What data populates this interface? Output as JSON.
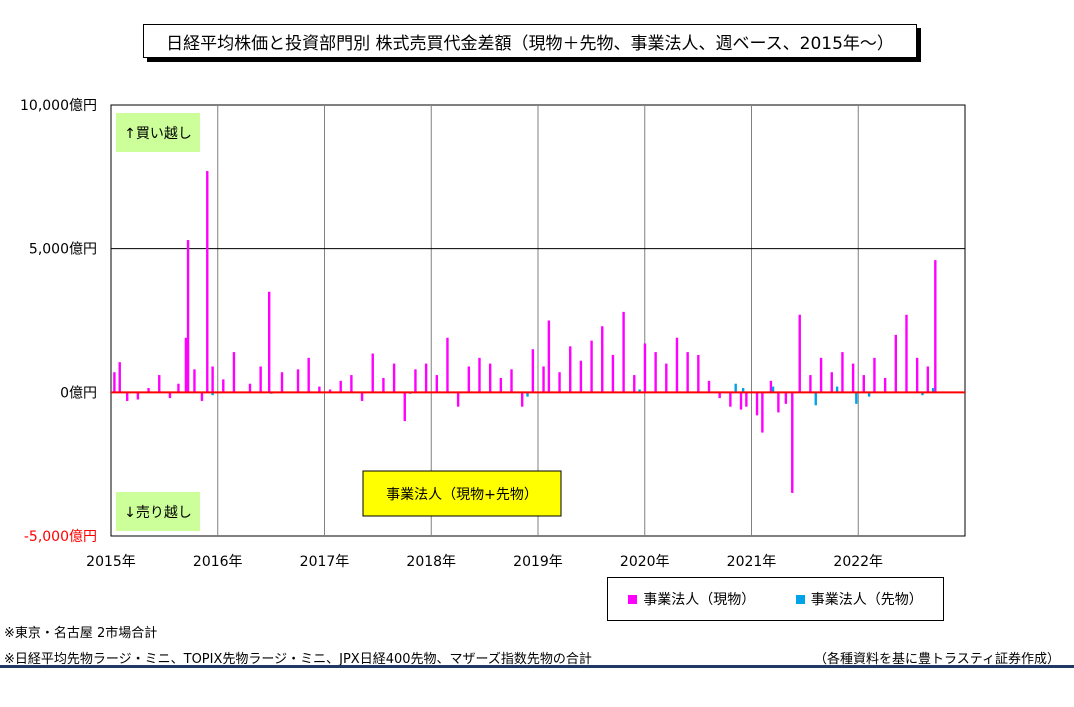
{
  "title": "日経平均株価と投資部門別 株式売買代金差額（現物＋先物、事業法人、週ベース、2015年～）",
  "notes": [
    "※東京・名古屋 2市場合計",
    "※日経平均先物ラージ・ミニ、TOPIX先物ラージ・ミニ、JPX日経400先物、マザーズ指数先物の合計"
  ],
  "source": "（各種資料を基に豊トラスティ証券作成）",
  "colors": {
    "spot": "#ff00ff",
    "futures": "#00a2e8",
    "zero_line": "#ff0000",
    "buy_box": "#ccff99",
    "series_box": "#ffff00",
    "neg_label": "#ff0000"
  },
  "chart_data": {
    "type": "bar",
    "title": "日経平均株価と投資部門別 株式売買代金差額（現物＋先物、事業法人、週ベース、2015年～）",
    "y_tick_labels": [
      "10,000億円",
      "5,000億円",
      "0億円",
      "-5,000億円"
    ],
    "y_ticks": [
      10000,
      5000,
      0,
      -5000
    ],
    "ylim": [
      -5000,
      10000
    ],
    "x_tick_labels": [
      "2015年",
      "2016年",
      "2017年",
      "2018年",
      "2019年",
      "2020年",
      "2021年",
      "2022年"
    ],
    "x_ticks": [
      2015,
      2016,
      2017,
      2018,
      2019,
      2020,
      2021,
      2022
    ],
    "xlim": [
      2015,
      2023
    ],
    "grid": true,
    "legend_placement": "bottom-right",
    "annotations": {
      "buy": "↑買い越し",
      "sell": "↓売り越し",
      "series_box": "事業法人（現物+先物）"
    },
    "series": [
      {
        "name": "事業法人（現物）",
        "points": [
          [
            2015.03,
            700
          ],
          [
            2015.08,
            1050
          ],
          [
            2015.15,
            -300
          ],
          [
            2015.25,
            -250
          ],
          [
            2015.35,
            150
          ],
          [
            2015.45,
            600
          ],
          [
            2015.55,
            -200
          ],
          [
            2015.63,
            300
          ],
          [
            2015.7,
            1900
          ],
          [
            2015.72,
            5300
          ],
          [
            2015.78,
            800
          ],
          [
            2015.85,
            -300
          ],
          [
            2015.9,
            7700
          ],
          [
            2015.95,
            900
          ],
          [
            2016.05,
            450
          ],
          [
            2016.15,
            1400
          ],
          [
            2016.3,
            300
          ],
          [
            2016.4,
            900
          ],
          [
            2016.48,
            3500
          ],
          [
            2016.6,
            700
          ],
          [
            2016.75,
            800
          ],
          [
            2016.85,
            1200
          ],
          [
            2016.95,
            200
          ],
          [
            2017.05,
            100
          ],
          [
            2017.15,
            400
          ],
          [
            2017.25,
            600
          ],
          [
            2017.35,
            -300
          ],
          [
            2017.45,
            1350
          ],
          [
            2017.55,
            500
          ],
          [
            2017.65,
            1000
          ],
          [
            2017.75,
            -1000
          ],
          [
            2017.85,
            800
          ],
          [
            2017.95,
            1000
          ],
          [
            2018.05,
            600
          ],
          [
            2018.15,
            1900
          ],
          [
            2018.25,
            -500
          ],
          [
            2018.35,
            900
          ],
          [
            2018.45,
            1200
          ],
          [
            2018.55,
            1000
          ],
          [
            2018.65,
            500
          ],
          [
            2018.75,
            800
          ],
          [
            2018.85,
            -500
          ],
          [
            2018.95,
            1500
          ],
          [
            2019.05,
            900
          ],
          [
            2019.1,
            2500
          ],
          [
            2019.2,
            700
          ],
          [
            2019.3,
            1600
          ],
          [
            2019.4,
            1100
          ],
          [
            2019.5,
            1800
          ],
          [
            2019.6,
            2300
          ],
          [
            2019.7,
            1300
          ],
          [
            2019.8,
            2800
          ],
          [
            2019.9,
            600
          ],
          [
            2020.0,
            1700
          ],
          [
            2020.1,
            1400
          ],
          [
            2020.2,
            1000
          ],
          [
            2020.3,
            1900
          ],
          [
            2020.4,
            1400
          ],
          [
            2020.5,
            1300
          ],
          [
            2020.6,
            400
          ],
          [
            2020.7,
            -200
          ],
          [
            2020.8,
            -500
          ],
          [
            2020.9,
            -600
          ],
          [
            2020.95,
            -500
          ],
          [
            2021.05,
            -800
          ],
          [
            2021.1,
            -1400
          ],
          [
            2021.18,
            400
          ],
          [
            2021.25,
            -700
          ],
          [
            2021.32,
            -400
          ],
          [
            2021.38,
            -3500
          ],
          [
            2021.45,
            2700
          ],
          [
            2021.55,
            600
          ],
          [
            2021.65,
            1200
          ],
          [
            2021.75,
            700
          ],
          [
            2021.85,
            1400
          ],
          [
            2021.95,
            1000
          ],
          [
            2022.05,
            600
          ],
          [
            2022.15,
            1200
          ],
          [
            2022.25,
            500
          ],
          [
            2022.35,
            2000
          ],
          [
            2022.45,
            2700
          ],
          [
            2022.55,
            1200
          ],
          [
            2022.65,
            900
          ],
          [
            2022.72,
            4600
          ]
        ]
      },
      {
        "name": "事業法人（先物）",
        "points": [
          [
            2015.95,
            -100
          ],
          [
            2016.5,
            -50
          ],
          [
            2017.8,
            -50
          ],
          [
            2018.9,
            -150
          ],
          [
            2019.95,
            100
          ],
          [
            2020.85,
            300
          ],
          [
            2020.92,
            150
          ],
          [
            2021.2,
            200
          ],
          [
            2021.6,
            -450
          ],
          [
            2021.8,
            200
          ],
          [
            2021.98,
            -400
          ],
          [
            2022.1,
            -150
          ],
          [
            2022.6,
            -100
          ],
          [
            2022.7,
            150
          ]
        ]
      }
    ]
  }
}
